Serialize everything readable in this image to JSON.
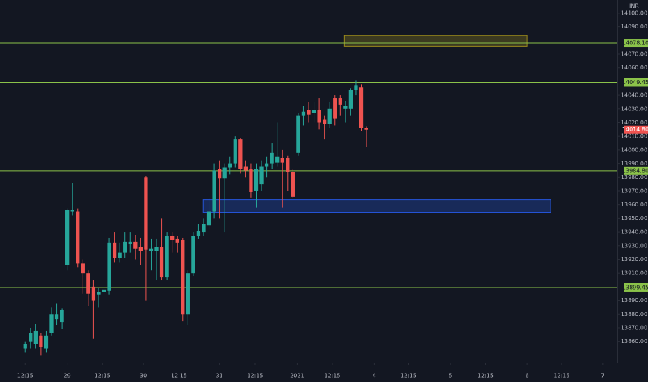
{
  "chart_data": {
    "type": "candlestick",
    "currency": "INR",
    "up_color": "#26a69a",
    "down_color": "#ef5350",
    "level_color": "#8bc34a",
    "candles": {
      "open": [
        13855,
        13860,
        13858,
        13864,
        13855,
        13866,
        13876,
        13874,
        13916,
        13955,
        13955,
        13917,
        13910,
        13900,
        13894,
        13896,
        13897,
        13932,
        13921,
        13925,
        13931,
        13933,
        13929,
        13980,
        13926,
        13926,
        13929,
        13907,
        13937,
        13935,
        13934,
        13880,
        13910,
        13937,
        13940,
        13945,
        13955,
        13986,
        13979,
        13987,
        13990,
        14008,
        13988,
        13986,
        13970,
        13975,
        13988,
        13990,
        13991,
        13994,
        13994,
        13984,
        13998,
        14025,
        14029,
        14027,
        14029,
        14022,
        14019,
        14038,
        14038,
        14030,
        14030,
        14044,
        14046,
        14016
      ],
      "high": [
        13860,
        13870,
        13873,
        13866,
        13868,
        13885,
        13888,
        13884,
        13957,
        13976,
        13957,
        13920,
        13912,
        13905,
        13899,
        13900,
        13936,
        13940,
        13932,
        13940,
        13940,
        13938,
        13936,
        13981,
        13935,
        13935,
        13950,
        13940,
        13940,
        13937,
        13936,
        13912,
        13940,
        13946,
        13950,
        13965,
        13990,
        13992,
        13990,
        13995,
        14010,
        14009,
        13992,
        13990,
        13990,
        13992,
        13995,
        14005,
        14020,
        14000,
        13996,
        13986,
        14027,
        14032,
        14035,
        14035,
        14038,
        14025,
        14035,
        14040,
        14040,
        14036,
        14045,
        14051,
        14048,
        14017
      ],
      "low": [
        13852,
        13855,
        13855,
        13850,
        13852,
        13864,
        13872,
        13869,
        13912,
        13952,
        13914,
        13895,
        13886,
        13862,
        13885,
        13888,
        13894,
        13918,
        13918,
        13921,
        13925,
        13920,
        13916,
        13890,
        13912,
        13905,
        13905,
        13905,
        13925,
        13925,
        13875,
        13872,
        13908,
        13935,
        13937,
        13942,
        13950,
        13950,
        13940,
        13982,
        13987,
        13983,
        13980,
        13965,
        13958,
        13970,
        13980,
        13986,
        13988,
        13958,
        13970,
        13965,
        13996,
        14018,
        14020,
        14020,
        14015,
        14008,
        14016,
        14018,
        14025,
        14020,
        14025,
        14040,
        14014,
        14002
      ],
      "close": [
        13858,
        13866,
        13868,
        13856,
        13864,
        13880,
        13880,
        13883,
        13956,
        13956,
        13917,
        13910,
        13895,
        13890,
        13896,
        13898,
        13932,
        13921,
        13925,
        13933,
        13933,
        13928,
        13926,
        13927,
        13928,
        13929,
        13907,
        13937,
        13934,
        13932,
        13880,
        13910,
        13937,
        13941,
        13946,
        13955,
        13985,
        13979,
        13987,
        13990,
        14008,
        13986,
        13985,
        13969,
        13986,
        13988,
        13990,
        13998,
        13995,
        13991,
        13984,
        13966,
        14025,
        14028,
        14026,
        14029,
        14020,
        14019,
        14030,
        14023,
        14033,
        14032,
        14044,
        14047,
        14016,
        14014.8
      ]
    },
    "last_price": {
      "value": 14014.8,
      "label": "14014.80"
    },
    "levels": [
      {
        "value": 14078.1,
        "label": "14078.10"
      },
      {
        "value": 14049.45,
        "label": "14049.45"
      },
      {
        "value": 13984.8,
        "label": "13984.80"
      },
      {
        "value": 13899.45,
        "label": "13899.45"
      }
    ],
    "zones": [
      {
        "x": [
          60.8,
          95.6
        ],
        "y": [
          14075.9,
          14083.6
        ],
        "color": "#b8a21a"
      },
      {
        "x": [
          33.9,
          100.1
        ],
        "y": [
          13954.5,
          13963.6
        ],
        "color": "#2962ff"
      }
    ],
    "xlim": [
      -4.8,
      112.8
    ],
    "xticks": [
      {
        "value": 0,
        "label": "12:15"
      },
      {
        "value": 8,
        "label": "29"
      },
      {
        "value": 14.7,
        "label": "12:15"
      },
      {
        "value": 22.5,
        "label": "30"
      },
      {
        "value": 29.3,
        "label": "12:15"
      },
      {
        "value": 37,
        "label": "31"
      },
      {
        "value": 43.8,
        "label": "12:15"
      },
      {
        "value": 51.8,
        "label": "2021"
      },
      {
        "value": 58.5,
        "label": "12:15"
      },
      {
        "value": 66.5,
        "label": "4"
      },
      {
        "value": 73,
        "label": "12:15"
      },
      {
        "value": 81,
        "label": "5"
      },
      {
        "value": 87.7,
        "label": "12:15"
      },
      {
        "value": 95.6,
        "label": "6"
      },
      {
        "value": 102.2,
        "label": "12:15"
      },
      {
        "value": 110,
        "label": "7"
      }
    ],
    "ylim": [
      13844.6,
      14109.6
    ],
    "yticks": [
      {
        "value": 13860,
        "label": "13860.00"
      },
      {
        "value": 13870,
        "label": "13870.00"
      },
      {
        "value": 13880,
        "label": "13880.00"
      },
      {
        "value": 13890,
        "label": "13890.00"
      },
      {
        "value": 13910,
        "label": "13910.00"
      },
      {
        "value": 13920,
        "label": "13920.00"
      },
      {
        "value": 13930,
        "label": "13930.00"
      },
      {
        "value": 13940,
        "label": "13940.00"
      },
      {
        "value": 13950,
        "label": "13950.00"
      },
      {
        "value": 13960,
        "label": "13960.00"
      },
      {
        "value": 13970,
        "label": "13970.00"
      },
      {
        "value": 13980,
        "label": "13980.00"
      },
      {
        "value": 13990,
        "label": "13990.00"
      },
      {
        "value": 14000,
        "label": "14000.00"
      },
      {
        "value": 14010,
        "label": "14010.00"
      },
      {
        "value": 14020,
        "label": "14020.00"
      },
      {
        "value": 14030,
        "label": "14030.00"
      },
      {
        "value": 14040,
        "label": "14040.00"
      },
      {
        "value": 14060,
        "label": "14060.00"
      },
      {
        "value": 14070,
        "label": "14070.00"
      },
      {
        "value": 14090,
        "label": "14090.00"
      },
      {
        "value": 14100,
        "label": "14100.00"
      }
    ]
  }
}
